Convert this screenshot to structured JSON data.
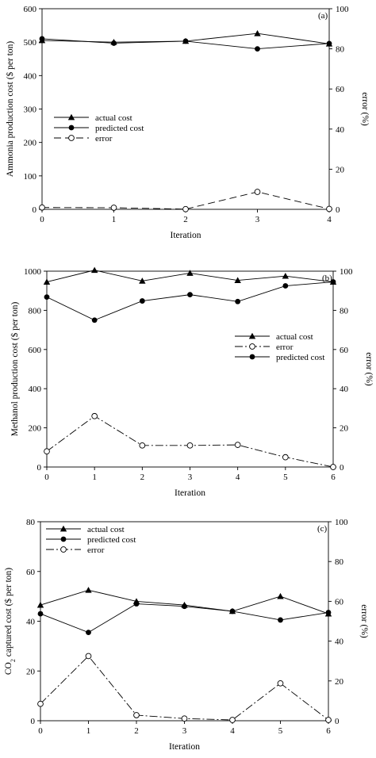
{
  "chart_data": [
    {
      "type": "line",
      "panel_label": "(a)",
      "xlabel": "Iteration",
      "ylabel": "Ammonia production cost ($ per ton)",
      "ylabel_parts": [
        {
          "text": "Ammonia production cost ($ per ton)"
        }
      ],
      "y2label": "error (%)",
      "x": [
        0,
        1,
        2,
        3,
        4
      ],
      "xlim": [
        0,
        4
      ],
      "ylim": [
        0,
        600
      ],
      "y2lim": [
        0,
        100
      ],
      "xticks": [
        "0",
        "1",
        "2",
        "3",
        "4"
      ],
      "yticks": [
        "0",
        "100",
        "200",
        "300",
        "400",
        "500",
        "600"
      ],
      "y2ticks": [
        "0",
        "20",
        "40",
        "60",
        "80",
        "100"
      ],
      "grid": false,
      "legend_position": "center-left",
      "legend_order": [
        "actual",
        "predicted",
        "error"
      ],
      "series": [
        {
          "name": "actual cost",
          "key": "actual",
          "axis": "left",
          "marker": "triangle",
          "dash": "solid",
          "values": [
            505,
            500,
            503,
            526,
            495
          ]
        },
        {
          "name": "predicted cost",
          "key": "predicted",
          "axis": "left",
          "marker": "circle",
          "dash": "solid",
          "values": [
            510,
            497,
            503,
            480,
            496
          ]
        },
        {
          "name": "error",
          "key": "error",
          "axis": "right",
          "marker": "open-circle",
          "dash": "dash",
          "values": [
            0.9,
            0.8,
            0.1,
            8.7,
            0.2
          ]
        }
      ]
    },
    {
      "type": "line",
      "panel_label": "(b)",
      "xlabel": "Iteration",
      "ylabel": "Methanol production cost ($ per ton)",
      "ylabel_parts": [
        {
          "text": "Methanol production cost ($ per ton)"
        }
      ],
      "y2label": "error (%)",
      "x": [
        0,
        1,
        2,
        3,
        4,
        5,
        6
      ],
      "xlim": [
        0,
        6
      ],
      "ylim": [
        0,
        1000
      ],
      "y2lim": [
        0,
        100
      ],
      "xticks": [
        "0",
        "1",
        "2",
        "3",
        "4",
        "5",
        "6"
      ],
      "yticks": [
        "0",
        "200",
        "400",
        "600",
        "800",
        "1000"
      ],
      "y2ticks": [
        "0",
        "20",
        "40",
        "60",
        "80",
        "100"
      ],
      "grid": false,
      "legend_position": "center-right",
      "legend_order": [
        "actual",
        "error",
        "predicted"
      ],
      "series": [
        {
          "name": "actual cost",
          "key": "actual",
          "axis": "left",
          "marker": "triangle",
          "dash": "solid",
          "values": [
            945,
            1005,
            950,
            990,
            953,
            975,
            945
          ]
        },
        {
          "name": "predicted cost",
          "key": "predicted",
          "axis": "left",
          "marker": "circle",
          "dash": "solid",
          "values": [
            868,
            750,
            848,
            880,
            845,
            925,
            945
          ]
        },
        {
          "name": "error",
          "key": "error",
          "axis": "right",
          "marker": "open-circle",
          "dash": "dashdot",
          "values": [
            8,
            26,
            11,
            11,
            11.3,
            5,
            0
          ]
        }
      ]
    },
    {
      "type": "line",
      "panel_label": "(c)",
      "xlabel": "Iteration",
      "ylabel": "CO2 captured cost ($ per ton)",
      "ylabel_parts": [
        {
          "text": "CO"
        },
        {
          "text": "2",
          "sub": true
        },
        {
          "text": " captured cost ($ per ton)"
        }
      ],
      "y2label": "error (%)",
      "x": [
        0,
        1,
        2,
        3,
        4,
        5,
        6
      ],
      "xlim": [
        0,
        6
      ],
      "ylim": [
        0,
        80
      ],
      "y2lim": [
        0,
        100
      ],
      "xticks": [
        "0",
        "1",
        "2",
        "3",
        "4",
        "5",
        "6"
      ],
      "yticks": [
        "0",
        "20",
        "40",
        "60",
        "80"
      ],
      "y2ticks": [
        "0",
        "20",
        "40",
        "60",
        "80",
        "100"
      ],
      "grid": false,
      "legend_position": "top-left",
      "legend_order": [
        "actual",
        "predicted",
        "error"
      ],
      "series": [
        {
          "name": "actual cost",
          "key": "actual",
          "axis": "left",
          "marker": "triangle",
          "dash": "solid",
          "values": [
            46.5,
            52.5,
            48,
            46.5,
            44,
            50,
            43
          ]
        },
        {
          "name": "predicted cost",
          "key": "predicted",
          "axis": "left",
          "marker": "circle",
          "dash": "solid",
          "values": [
            43,
            35.5,
            47,
            46,
            44,
            40.5,
            43.5
          ]
        },
        {
          "name": "error",
          "key": "error",
          "axis": "right",
          "marker": "open-circle",
          "dash": "dashdot",
          "values": [
            8.5,
            32.5,
            2.8,
            1.1,
            0.4,
            18.8,
            0.4
          ]
        }
      ]
    }
  ]
}
